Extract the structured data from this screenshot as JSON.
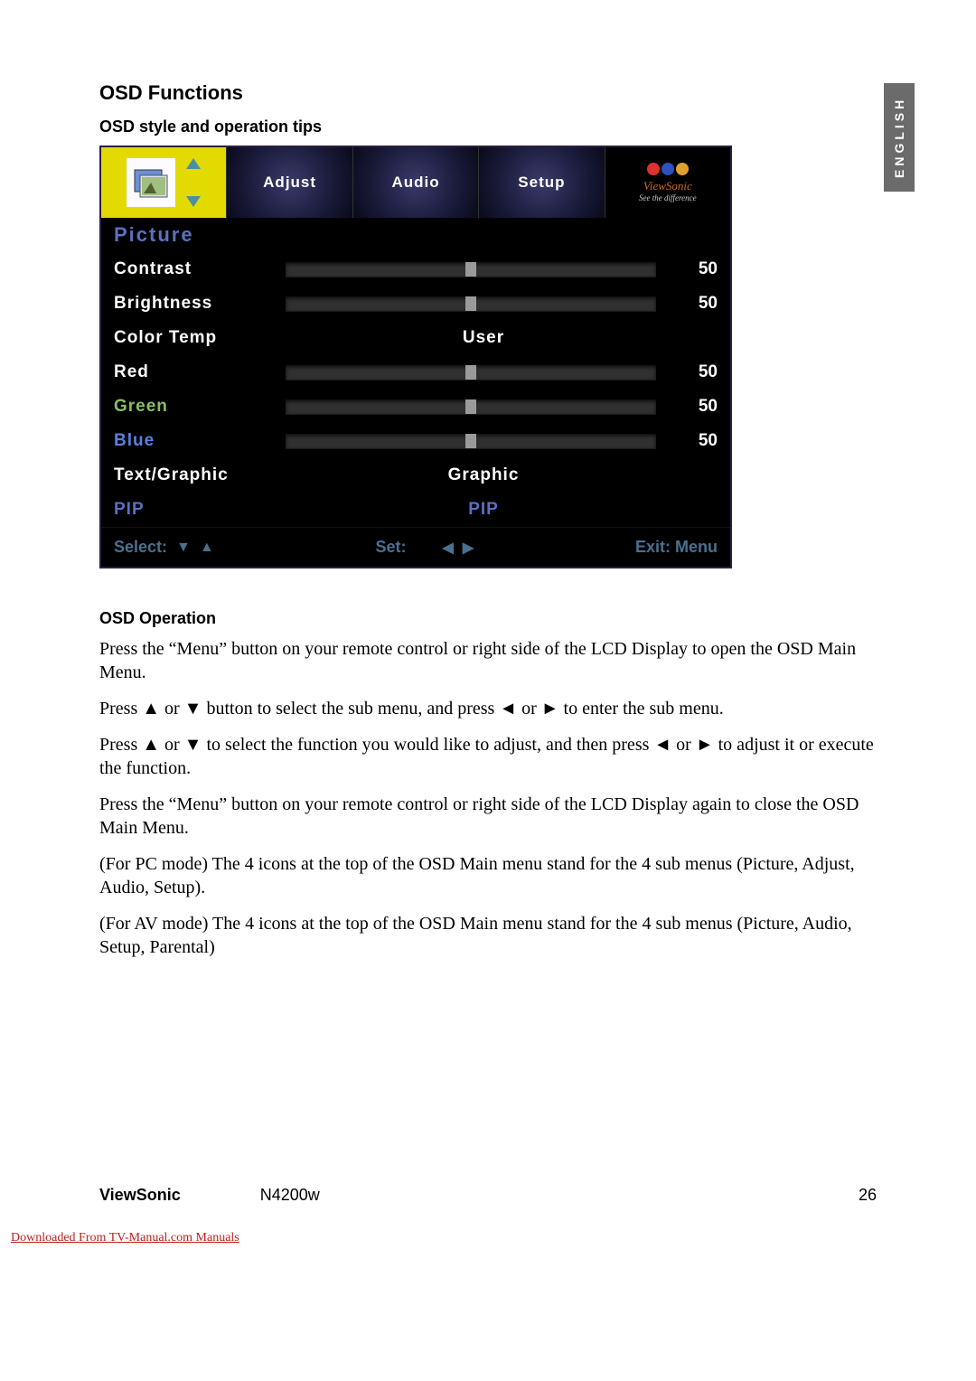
{
  "language_tab": "ENGLISH",
  "heading": "OSD Functions",
  "subheading": "OSD style and operation tips",
  "osd": {
    "tabs": {
      "active_icon": "picture-icon",
      "items": [
        "Adjust",
        "Audio",
        "Setup"
      ],
      "logo_text": "ViewSonic",
      "logo_sub": "See the difference"
    },
    "section": "Picture",
    "rows": [
      {
        "label": "Contrast",
        "type": "slider",
        "value": 50,
        "max": 100
      },
      {
        "label": "Brightness",
        "type": "slider",
        "value": 50,
        "max": 100
      },
      {
        "label": "Color Temp",
        "type": "text",
        "center": "User"
      },
      {
        "label": "Red",
        "type": "slider",
        "value": 50,
        "max": 100
      },
      {
        "label": "Green",
        "type": "slider",
        "value": 50,
        "max": 100,
        "class": "green"
      },
      {
        "label": "Blue",
        "type": "slider",
        "value": 50,
        "max": 100,
        "class": "blue"
      },
      {
        "label": "Text/Graphic",
        "type": "text",
        "center": "Graphic"
      },
      {
        "label": "PIP",
        "type": "text",
        "center": "PIP",
        "class": "pip"
      }
    ],
    "footer": {
      "select": "Select:",
      "set": "Set:",
      "exit": "Exit: Menu"
    },
    "colors": {
      "active_tab_bg": "#e2da00",
      "inactive_tab_bg": "#1a1a3a",
      "section_color": "#5a70c0",
      "label_color": "#ffffff",
      "green_color": "#88c060",
      "blue_color": "#5a80e0",
      "footer_color": "#4a7090"
    }
  },
  "operation_heading": "OSD Operation",
  "paragraphs": [
    "Press the “Menu” button on your remote control or right side of the LCD Display to open the OSD Main Menu.",
    "Press ▲ or ▼ button to select the sub menu, and press ◄ or ► to enter the sub menu.",
    "Press ▲ or ▼ to select the function you would like to adjust, and then press ◄ or ► to adjust it or execute the function.",
    "Press the “Menu” button on your remote control or right side of the LCD Display again to close the OSD Main Menu.",
    "(For PC mode) The 4 icons at the top of the OSD Main menu stand for the 4 sub menus (Picture, Adjust, Audio, Setup).",
    "(For AV mode) The 4 icons at the top of the OSD Main menu stand for the 4 sub menus (Picture, Audio, Setup, Parental)"
  ],
  "footer_brand": "ViewSonic",
  "footer_model": "N4200w",
  "footer_page": "26",
  "download_note": "Downloaded From TV-Manual.com Manuals"
}
